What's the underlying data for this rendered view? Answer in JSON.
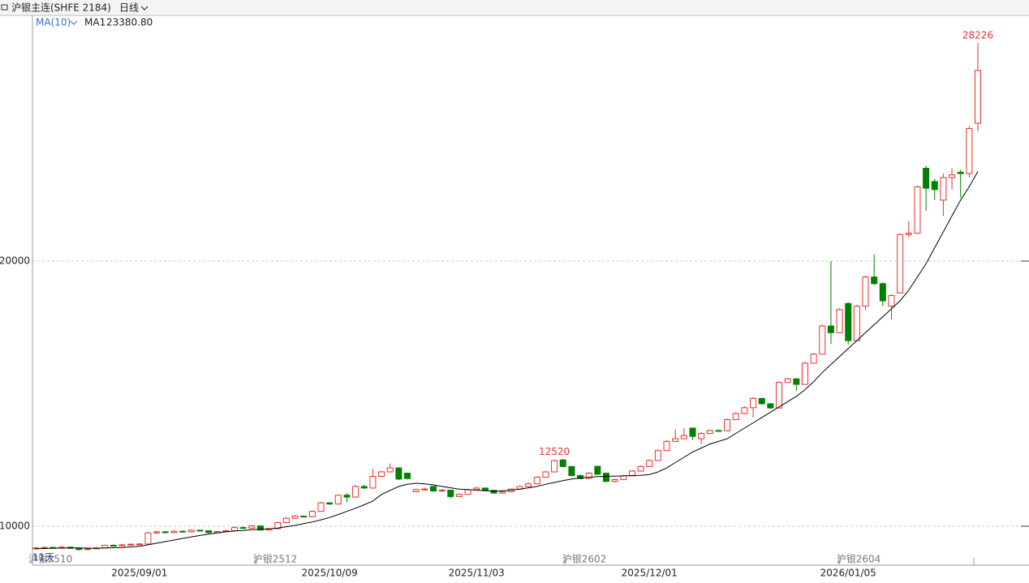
{
  "chart_data": {
    "type": "candlestick",
    "title": "沪银主连(SHFE 2184)",
    "period": "日线",
    "indicator": "MA(10)",
    "up_color": "#e8312f",
    "down_color": "#008000",
    "ylim": [
      8532,
      29235
    ],
    "yticks": [
      10000,
      20000
    ],
    "grid": true,
    "categories": [
      null,
      null,
      null,
      null,
      null,
      null,
      null,
      null,
      null,
      null,
      null,
      null,
      "2025/09/01",
      null,
      null,
      null,
      null,
      null,
      null,
      null,
      null,
      null,
      null,
      null,
      null,
      null,
      null,
      null,
      null,
      null,
      null,
      null,
      null,
      null,
      "2025/10/09",
      null,
      null,
      null,
      null,
      null,
      null,
      null,
      null,
      null,
      null,
      null,
      null,
      null,
      null,
      null,
      null,
      "2025/11/03",
      null,
      null,
      null,
      null,
      null,
      null,
      null,
      null,
      null,
      null,
      null,
      null,
      null,
      null,
      null,
      null,
      null,
      null,
      null,
      "2025/12/01",
      null,
      null,
      null,
      null,
      null,
      null,
      null,
      null,
      null,
      null,
      null,
      null,
      null,
      null,
      null,
      null,
      null,
      null,
      null,
      null,
      null,
      null,
      "2026/01/05",
      null,
      null,
      null,
      null,
      null,
      null,
      null,
      null,
      null,
      null,
      null,
      null,
      null,
      null,
      null
    ],
    "candles": [
      [
        9150,
        9230,
        9110,
        9180
      ],
      [
        9180,
        9240,
        9150,
        9200
      ],
      [
        9200,
        9230,
        9160,
        9190
      ],
      [
        9190,
        9250,
        9160,
        9210
      ],
      [
        9210,
        9230,
        9140,
        9170
      ],
      [
        9170,
        9190,
        9080,
        9120
      ],
      [
        9120,
        9190,
        9100,
        9150
      ],
      [
        9150,
        9210,
        9130,
        9180
      ],
      [
        9180,
        9310,
        9160,
        9280
      ],
      [
        9280,
        9320,
        9230,
        9260
      ],
      [
        9260,
        9340,
        9240,
        9300
      ],
      [
        9300,
        9360,
        9270,
        9320
      ],
      [
        9320,
        9370,
        9290,
        9330
      ],
      [
        9330,
        9790,
        9310,
        9750
      ],
      [
        9750,
        9830,
        9700,
        9790
      ],
      [
        9790,
        9820,
        9720,
        9760
      ],
      [
        9760,
        9850,
        9740,
        9810
      ],
      [
        9810,
        9840,
        9760,
        9790
      ],
      [
        9790,
        9880,
        9770,
        9850
      ],
      [
        9850,
        9870,
        9800,
        9830
      ],
      [
        9830,
        9850,
        9730,
        9760
      ],
      [
        9760,
        9830,
        9740,
        9800
      ],
      [
        9800,
        9870,
        9780,
        9830
      ],
      [
        9830,
        9990,
        9810,
        9950
      ],
      [
        9950,
        9980,
        9900,
        9930
      ],
      [
        9930,
        10050,
        9910,
        10010
      ],
      [
        10010,
        10030,
        9830,
        9860
      ],
      [
        9860,
        9940,
        9840,
        9910
      ],
      [
        9910,
        10180,
        9890,
        10140
      ],
      [
        10140,
        10340,
        10120,
        10300
      ],
      [
        10300,
        10420,
        10280,
        10380
      ],
      [
        10380,
        10400,
        10330,
        10360
      ],
      [
        10360,
        10600,
        10340,
        10560
      ],
      [
        10560,
        10920,
        10540,
        10880
      ],
      [
        10880,
        10910,
        10800,
        10840
      ],
      [
        10840,
        11200,
        10820,
        11170
      ],
      [
        11170,
        11250,
        10900,
        11100
      ],
      [
        11100,
        11560,
        11080,
        11500
      ],
      [
        11500,
        11560,
        11420,
        11440
      ],
      [
        11440,
        12170,
        11420,
        11880
      ],
      [
        11880,
        12090,
        11860,
        12050
      ],
      [
        12050,
        12366,
        12020,
        12200
      ],
      [
        12200,
        12220,
        11740,
        11780
      ],
      [
        12000,
        12020,
        11770,
        11800
      ],
      [
        11300,
        11420,
        11280,
        11380
      ],
      [
        11380,
        11460,
        11350,
        11400
      ],
      [
        11500,
        11520,
        11300,
        11330
      ],
      [
        11330,
        11400,
        11300,
        11360
      ],
      [
        11360,
        11380,
        11050,
        11120
      ],
      [
        11120,
        11250,
        11100,
        11200
      ],
      [
        11200,
        11420,
        11180,
        11380
      ],
      [
        11380,
        11480,
        11360,
        11440
      ],
      [
        11440,
        11460,
        11320,
        11350
      ],
      [
        11350,
        11380,
        11230,
        11250
      ],
      [
        11250,
        11340,
        11230,
        11300
      ],
      [
        11300,
        11420,
        11280,
        11400
      ],
      [
        11400,
        11530,
        11380,
        11500
      ],
      [
        11500,
        11640,
        11480,
        11600
      ],
      [
        11600,
        11880,
        11580,
        11850
      ],
      [
        11850,
        12080,
        11830,
        12050
      ],
      [
        12050,
        12520,
        12030,
        12470
      ],
      [
        12500,
        12540,
        12220,
        12250
      ],
      [
        12250,
        12270,
        11880,
        11910
      ],
      [
        11910,
        11950,
        11770,
        11800
      ],
      [
        11800,
        12050,
        11780,
        12000
      ],
      [
        12260,
        12280,
        11940,
        11960
      ],
      [
        12000,
        12020,
        11660,
        11690
      ],
      [
        11690,
        11800,
        11650,
        11760
      ],
      [
        11760,
        11940,
        11740,
        11900
      ],
      [
        11900,
        12120,
        11880,
        12080
      ],
      [
        12080,
        12290,
        12060,
        12250
      ],
      [
        12250,
        12520,
        12230,
        12480
      ],
      [
        12480,
        12900,
        12460,
        12850
      ],
      [
        12850,
        13250,
        12830,
        13200
      ],
      [
        13200,
        13650,
        13180,
        13300
      ],
      [
        13300,
        13700,
        13280,
        13420
      ],
      [
        13700,
        13720,
        13250,
        13390
      ],
      [
        13300,
        13550,
        13100,
        13500
      ],
      [
        13500,
        13640,
        13480,
        13610
      ],
      [
        13610,
        13650,
        13560,
        13600
      ],
      [
        13600,
        14060,
        13580,
        14020
      ],
      [
        14020,
        14300,
        14000,
        14250
      ],
      [
        14250,
        14520,
        14230,
        14470
      ],
      [
        14470,
        14870,
        14100,
        14820
      ],
      [
        14820,
        14840,
        14580,
        14620
      ],
      [
        14620,
        14640,
        14420,
        14460
      ],
      [
        14460,
        15470,
        14440,
        15420
      ],
      [
        15420,
        15600,
        15400,
        15560
      ],
      [
        15560,
        15580,
        15100,
        15350
      ],
      [
        15350,
        16200,
        15330,
        16150
      ],
      [
        16150,
        16530,
        16130,
        16490
      ],
      [
        16490,
        17600,
        16470,
        17550
      ],
      [
        17550,
        20000,
        16880,
        17300
      ],
      [
        17300,
        18230,
        17280,
        18170
      ],
      [
        18400,
        18450,
        16850,
        17000
      ],
      [
        17000,
        18350,
        16980,
        18300
      ],
      [
        18300,
        19450,
        18150,
        19400
      ],
      [
        19400,
        20250,
        19100,
        19150
      ],
      [
        19150,
        19200,
        18300,
        18500
      ],
      [
        18300,
        18750,
        17800,
        18700
      ],
      [
        18800,
        21050,
        18780,
        21000
      ],
      [
        21000,
        21500,
        20900,
        21050
      ],
      [
        21050,
        22850,
        21030,
        22800
      ],
      [
        23500,
        23600,
        21900,
        22750
      ],
      [
        23000,
        23100,
        22300,
        22700
      ],
      [
        22300,
        23300,
        21700,
        23150
      ],
      [
        23150,
        23500,
        22700,
        23250
      ],
      [
        23350,
        23450,
        22400,
        23300
      ],
      [
        23300,
        25100,
        23150,
        25000
      ],
      [
        25200,
        28226,
        24900,
        27190
      ]
    ],
    "ma": {
      "name": "MA1",
      "color": "#000000",
      "last_label": "23380.80",
      "values": [
        9150,
        9160,
        9170,
        9175,
        9180,
        9180,
        9175,
        9170,
        9180,
        9190,
        9200,
        9220,
        9240,
        9300,
        9360,
        9420,
        9480,
        9540,
        9600,
        9650,
        9700,
        9750,
        9790,
        9820,
        9840,
        9870,
        9880,
        9900,
        9930,
        9980,
        10030,
        10100,
        10160,
        10240,
        10330,
        10440,
        10560,
        10680,
        10810,
        10950,
        11200,
        11350,
        11500,
        11580,
        11620,
        11600,
        11560,
        11500,
        11450,
        11400,
        11380,
        11360,
        11340,
        11330,
        11340,
        11360,
        11400,
        11450,
        11500,
        11580,
        11650,
        11720,
        11780,
        11820,
        11850,
        11870,
        11880,
        11890,
        11900,
        11910,
        11920,
        11950,
        12050,
        12200,
        12400,
        12600,
        12800,
        12950,
        13100,
        13200,
        13300,
        13500,
        13700,
        13900,
        14100,
        14300,
        14500,
        14700,
        14900,
        15150,
        15450,
        15800,
        16100,
        16400,
        16700,
        17000,
        17300,
        17600,
        17900,
        18200,
        18500,
        18900,
        19400,
        19900,
        20500,
        21100,
        21700,
        22300,
        22800,
        23380.8
      ]
    },
    "contracts": [
      "沪银2510",
      "沪银2512",
      "沪银2602",
      "沪银2604"
    ],
    "countdown": "11天"
  }
}
